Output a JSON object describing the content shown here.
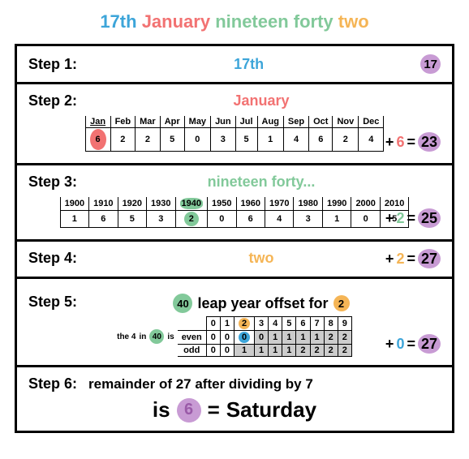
{
  "colors": {
    "blue": "#3da5d9",
    "red": "#f27272",
    "green": "#82c99a",
    "orange": "#f5b556",
    "purple": "#c89bd4",
    "darkpurple": "#9a5aa8",
    "black": "#000",
    "grey": "#cccccc"
  },
  "title": {
    "p1": "17th",
    "p2": "January",
    "p3": "nineteen forty",
    "p4": "two"
  },
  "step1": {
    "label": "Step 1:",
    "topic": "17th",
    "badge": "17"
  },
  "step2": {
    "label": "Step 2:",
    "topic": "January",
    "months": [
      "Jan",
      "Feb",
      "Mar",
      "Apr",
      "May",
      "Jun",
      "Jul",
      "Aug",
      "Sep",
      "Oct",
      "Nov",
      "Dec"
    ],
    "codes": [
      "6",
      "2",
      "2",
      "5",
      "0",
      "3",
      "5",
      "1",
      "4",
      "6",
      "2",
      "4"
    ],
    "hi": 0,
    "plus": "+",
    "val": "6",
    "eq": "=",
    "sum": "23"
  },
  "step3": {
    "label": "Step 3:",
    "topic": "nineteen forty...",
    "decades": [
      "1900",
      "1910",
      "1920",
      "1930",
      "1940",
      "1950",
      "1960",
      "1970",
      "1980",
      "1990",
      "2000",
      "2010"
    ],
    "codes": [
      "1",
      "6",
      "5",
      "3",
      "2",
      "0",
      "6",
      "4",
      "3",
      "1",
      "0",
      "5"
    ],
    "hi": 4,
    "plus": "+",
    "val": "2",
    "eq": "=",
    "sum": "25"
  },
  "step4": {
    "label": "Step 4:",
    "topic": "two",
    "plus": "+",
    "val": "2",
    "eq": "=",
    "sum": "27"
  },
  "step5": {
    "label": "Step 5:",
    "d": "40",
    "txt": "leap year offset for",
    "y": "2",
    "note1": "the 4",
    "note2": "in",
    "note3": "is",
    "even": "even",
    "odd": "odd",
    "cols": [
      "0",
      "1",
      "2",
      "3",
      "4",
      "5",
      "6",
      "7",
      "8",
      "9"
    ],
    "evenrow": [
      "0",
      "0",
      "0",
      "0",
      "1",
      "1",
      "1",
      "1",
      "2",
      "2"
    ],
    "oddrow": [
      "0",
      "0",
      "1",
      "1",
      "1",
      "1",
      "2",
      "2",
      "2",
      "2"
    ],
    "hi_col": 2,
    "grey_from": 3,
    "plus": "+",
    "val": "0",
    "eq": "=",
    "sum": "27"
  },
  "step6": {
    "label": "Step 6:",
    "txt": "remainder of 27 after dividing by 7",
    "is": "is",
    "r": "6",
    "eq": "=",
    "day": "Saturday"
  }
}
